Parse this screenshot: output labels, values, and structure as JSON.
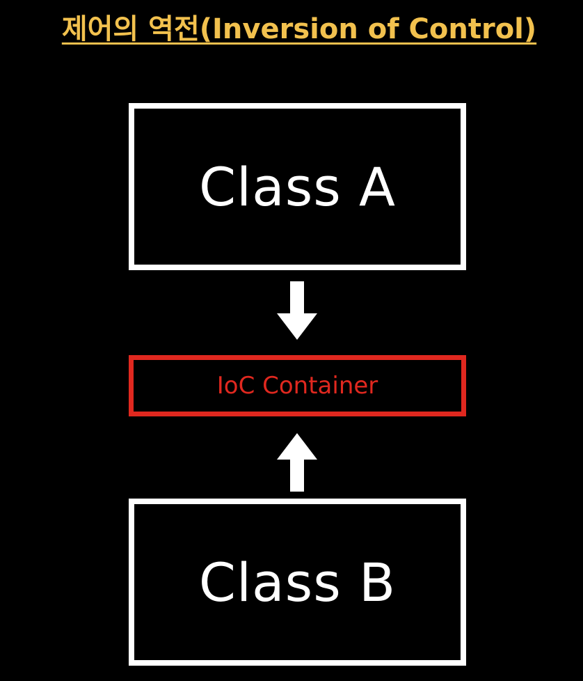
{
  "title": "제어의 역전(Inversion of Control)",
  "diagram": {
    "nodes": [
      {
        "id": "class_a",
        "label": "Class A"
      },
      {
        "id": "ioc_container",
        "label": "IoC Container"
      },
      {
        "id": "class_b",
        "label": "Class B"
      }
    ],
    "edges": [
      {
        "from": "class_a",
        "to": "ioc_container",
        "direction": "down"
      },
      {
        "from": "class_b",
        "to": "ioc_container",
        "direction": "up"
      }
    ]
  },
  "colors": {
    "background": "#000000",
    "title": "#f2c14e",
    "box_border": "#ffffff",
    "ioc_border": "#e0281f",
    "ioc_text": "#e0281f",
    "arrow": "#ffffff"
  }
}
